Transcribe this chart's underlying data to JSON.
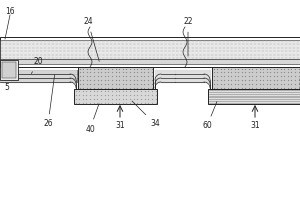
{
  "figsize": [
    3.0,
    2.0
  ],
  "dpi": 100,
  "line_color": "#222222",
  "bg": "white",
  "lw": 0.7,
  "label_fs": 5.5
}
